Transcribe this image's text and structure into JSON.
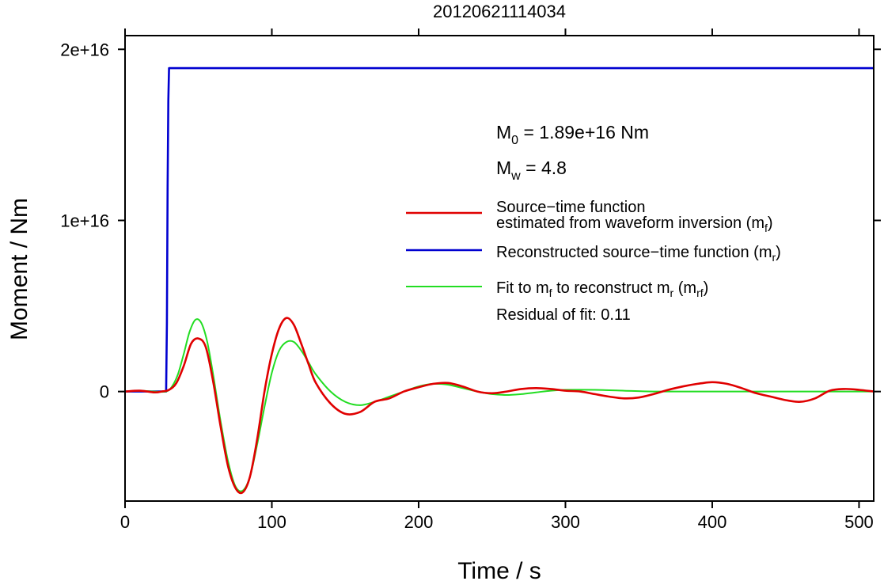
{
  "chart_data": {
    "type": "line",
    "title": "20120621114034",
    "xlabel": "Time / s",
    "ylabel": "Moment / Nm",
    "xlim": [
      0,
      510
    ],
    "ylim": [
      -6400000000000000.0,
      2.08e+16
    ],
    "xticks": [
      0,
      100,
      200,
      300,
      400,
      500
    ],
    "xtick_labels": [
      "0",
      "100",
      "200",
      "300",
      "400",
      "500"
    ],
    "yticks": [
      0,
      1e+16,
      2e+16
    ],
    "ytick_labels": [
      "0",
      "1e+16",
      "2e+16"
    ],
    "grid": false,
    "legend_position": "right",
    "annotations": {
      "m0": {
        "base": "M",
        "sub": "0",
        "text": " = 1.89e+16 Nm"
      },
      "mw": {
        "base": "M",
        "sub": "w",
        "text": " = 4.8"
      },
      "residual": "Residual of fit: 0.11"
    },
    "series": [
      {
        "key": "red",
        "color": "#e00000",
        "legend_lines": [
          {
            "text": "Source−time function"
          },
          {
            "text": "estimated from waveform inversion (m",
            "sub": "f",
            "tail": ")"
          }
        ],
        "x": [
          0,
          10,
          20,
          25,
          30,
          35,
          40,
          45,
          50,
          55,
          60,
          65,
          70,
          75,
          80,
          85,
          90,
          95,
          100,
          105,
          110,
          115,
          120,
          125,
          130,
          140,
          150,
          160,
          170,
          180,
          190,
          200,
          210,
          220,
          230,
          240,
          250,
          260,
          270,
          280,
          290,
          300,
          310,
          320,
          330,
          340,
          350,
          360,
          370,
          380,
          390,
          400,
          410,
          420,
          430,
          440,
          450,
          460,
          470,
          480,
          490,
          500,
          510
        ],
        "values": [
          0,
          50000000000000.0,
          -50000000000000.0,
          0,
          100000000000000.0,
          500000000000000.0,
          1500000000000000.0,
          2800000000000000.0,
          3100000000000000.0,
          2600000000000000.0,
          600000000000000.0,
          -2000000000000000.0,
          -4300000000000000.0,
          -5600000000000000.0,
          -5900000000000000.0,
          -5000000000000000.0,
          -2800000000000000.0,
          0,
          2200000000000000.0,
          3700000000000000.0,
          4300000000000000.0,
          3900000000000000.0,
          2800000000000000.0,
          1600000000000000.0,
          500000000000000.0,
          -700000000000000.0,
          -1300000000000000.0,
          -1200000000000000.0,
          -600000000000000.0,
          -400000000000000.0,
          0,
          250000000000000.0,
          450000000000000.0,
          500000000000000.0,
          300000000000000.0,
          0,
          -100000000000000.0,
          0,
          150000000000000.0,
          200000000000000.0,
          150000000000000.0,
          50000000000000.0,
          0,
          -150000000000000.0,
          -300000000000000.0,
          -400000000000000.0,
          -350000000000000.0,
          -150000000000000.0,
          100000000000000.0,
          300000000000000.0,
          450000000000000.0,
          550000000000000.0,
          450000000000000.0,
          200000000000000.0,
          -100000000000000.0,
          -300000000000000.0,
          -500000000000000.0,
          -600000000000000.0,
          -400000000000000.0,
          50000000000000.0,
          150000000000000.0,
          100000000000000.0,
          0
        ]
      },
      {
        "key": "blue",
        "color": "#0000d0",
        "legend_lines": [
          {
            "text": "Reconstructed source−time function (m",
            "sub": "r",
            "tail": ")"
          }
        ],
        "x": [
          0,
          10,
          20,
          28,
          28.5,
          29,
          29.5,
          30,
          510
        ],
        "values": [
          0,
          0,
          0,
          0,
          4000000000000000.0,
          1.2e+16,
          1.7e+16,
          1.89e+16,
          1.89e+16
        ]
      },
      {
        "key": "green",
        "color": "#22dd22",
        "legend_lines": [
          {
            "text": "Fit to m",
            "sub": "f",
            "tail": " to reconstruct m",
            "sub2": "r",
            "tail2": " (m",
            "sub3": "rf",
            "tail3": ")"
          }
        ],
        "x": [
          0,
          10,
          20,
          28,
          32,
          36,
          40,
          44,
          48,
          52,
          56,
          60,
          65,
          70,
          75,
          80,
          85,
          90,
          95,
          100,
          105,
          110,
          115,
          120,
          125,
          130,
          140,
          150,
          160,
          170,
          180,
          190,
          200,
          210,
          220,
          230,
          240,
          250,
          260,
          270,
          280,
          290,
          300,
          320,
          340,
          360,
          380,
          400,
          420,
          440,
          460,
          480,
          500,
          510
        ],
        "values": [
          0,
          50000000000000.0,
          0,
          0,
          300000000000000.0,
          1000000000000000.0,
          2200000000000000.0,
          3500000000000000.0,
          4200000000000000.0,
          4000000000000000.0,
          2900000000000000.0,
          1000000000000000.0,
          -1700000000000000.0,
          -4000000000000000.0,
          -5500000000000000.0,
          -5800000000000000.0,
          -5000000000000000.0,
          -3100000000000000.0,
          -900000000000000.0,
          1100000000000000.0,
          2400000000000000.0,
          2900000000000000.0,
          2900000000000000.0,
          2400000000000000.0,
          1700000000000000.0,
          1000000000000000.0,
          0,
          -600000000000000.0,
          -800000000000000.0,
          -600000000000000.0,
          -300000000000000.0,
          0,
          300000000000000.0,
          450000000000000.0,
          400000000000000.0,
          200000000000000.0,
          0,
          -150000000000000.0,
          -200000000000000.0,
          -150000000000000.0,
          -50000000000000.0,
          50000000000000.0,
          100000000000000.0,
          100000000000000.0,
          50000000000000.0,
          0,
          0,
          0,
          0,
          0,
          0,
          0,
          0,
          0
        ]
      }
    ]
  }
}
